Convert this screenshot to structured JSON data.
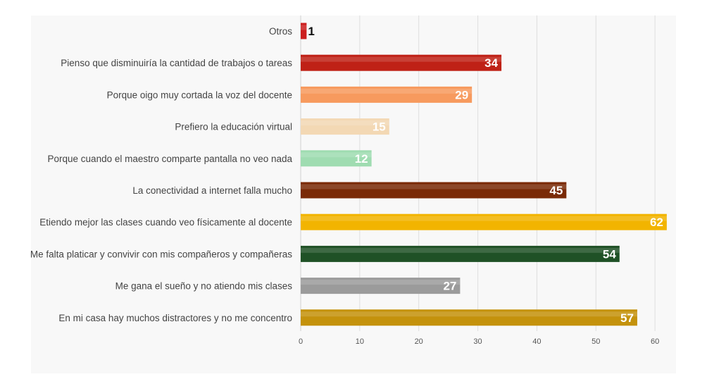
{
  "chart_data": {
    "type": "bar",
    "orientation": "horizontal",
    "title": "",
    "xlabel": "",
    "ylabel": "",
    "categories": [
      "Otros",
      "Pienso que disminuiría la cantidad de trabajos o tareas",
      "Porque oigo muy cortada la voz del docente",
      "Prefiero la educación virtual",
      "Porque cuando el maestro comparte pantalla no veo nada",
      "La conectividad a internet falla mucho",
      "Etiendo mejor las clases cuando veo físicamente al docente",
      "Me falta platicar y convivir con mis compañeros y compañeras",
      "Me gana el sueño y no atiendo mis clases",
      "En mi casa hay muchos distractores y no me concentro"
    ],
    "values": [
      1,
      34,
      29,
      15,
      12,
      45,
      62,
      54,
      27,
      57
    ],
    "colors": [
      "#cc1f1f",
      "#bf2116",
      "#f79a5e",
      "#f3d8b4",
      "#9fdcb1",
      "#7a2a07",
      "#f2b400",
      "#1f5126",
      "#9b9b9b",
      "#c4920c"
    ],
    "label_colors": [
      "#111111",
      "#ffffff",
      "#ffffff",
      "#ffffff",
      "#ffffff",
      "#ffffff",
      "#ffffff",
      "#ffffff",
      "#ffffff",
      "#ffffff"
    ],
    "xlim": [
      0,
      62
    ],
    "xticks": [
      0,
      10,
      20,
      30,
      40,
      50,
      60
    ],
    "grid": true,
    "legend": "none"
  }
}
